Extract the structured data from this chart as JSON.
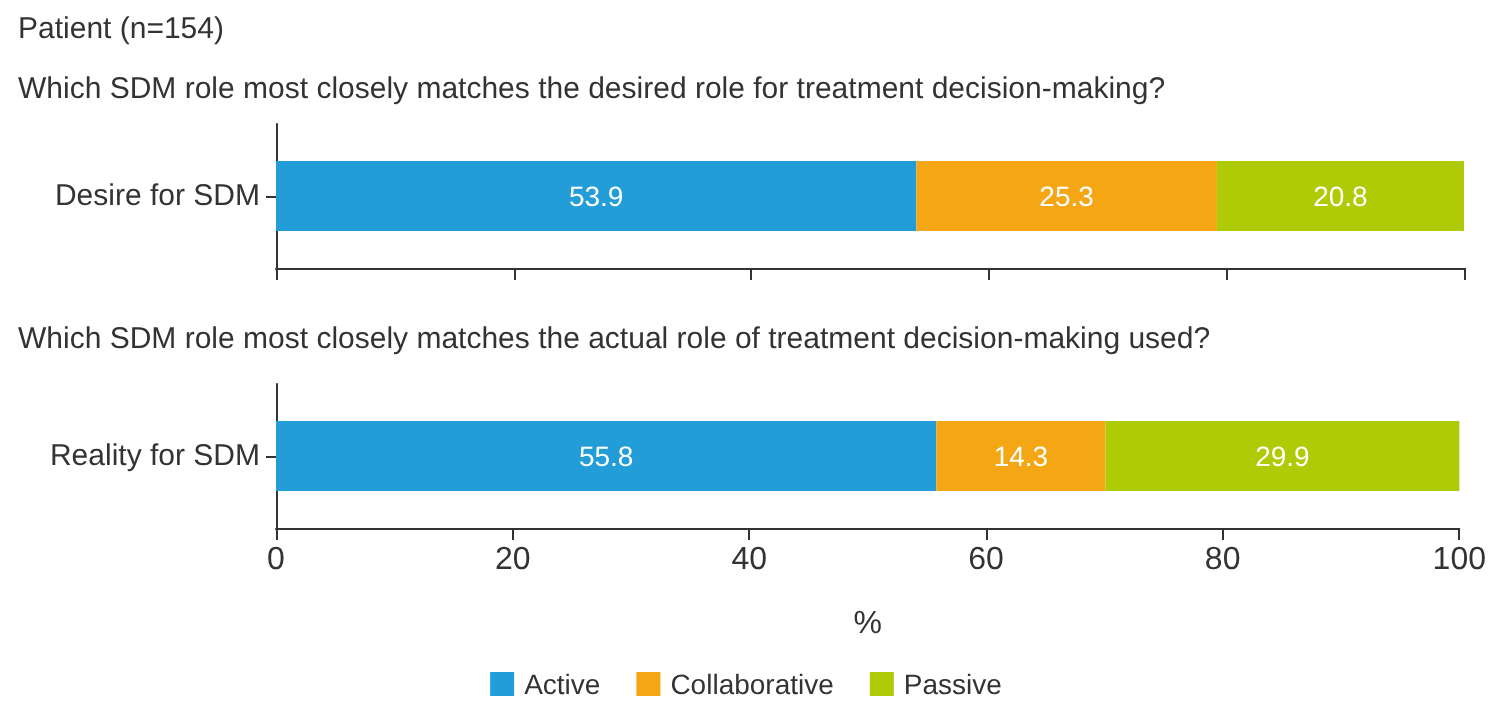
{
  "chart_data": [
    {
      "type": "bar",
      "title": "Patient (n=154)",
      "subtitle": "Which SDM role most closely matches the desired role for treatment decision-making?",
      "orientation": "horizontal",
      "stacked": true,
      "categories": [
        "Desire for SDM"
      ],
      "series": [
        {
          "color": "#239dd8",
          "values": [
            53.9
          ]
        },
        {
          "color": "#f5a615",
          "values": [
            25.3
          ]
        },
        {
          "color": "#aecb06",
          "values": [
            20.8
          ]
        }
      ],
      "xlim": [
        0,
        100
      ],
      "xticks": [
        0,
        20,
        40,
        60,
        80,
        100
      ],
      "tick_labels": "y",
      "data_labels": true,
      "grid": false,
      "legend": false
    },
    {
      "type": "bar",
      "title": "Which SDM role most closely matches the actual role of treatment decision-making used?",
      "xlabel": "%",
      "orientation": "horizontal",
      "stacked": true,
      "categories": [
        "Reality for SDM"
      ],
      "series": [
        {
          "name": "Active",
          "color": "#239dd8",
          "values": [
            55.8
          ]
        },
        {
          "name": "Collaborative",
          "color": "#f5a615",
          "values": [
            14.3
          ]
        },
        {
          "name": "Passive",
          "color": "#aecb06",
          "values": [
            29.9
          ]
        }
      ],
      "xlim": [
        0,
        100
      ],
      "xticks": [
        0,
        20,
        40,
        60,
        80,
        100
      ],
      "data_labels": true,
      "grid": false,
      "legend": "bottom"
    }
  ]
}
